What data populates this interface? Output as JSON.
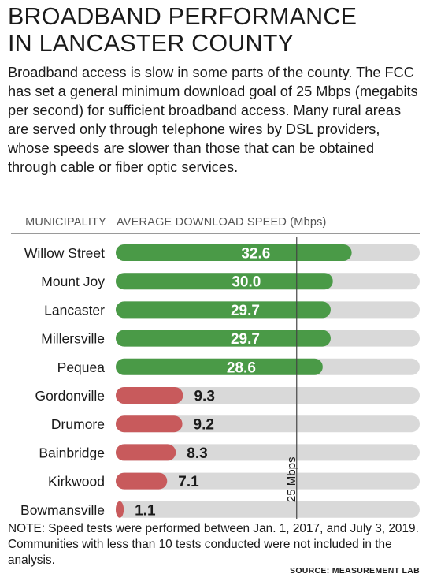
{
  "header": {
    "title_line1": "BROADBAND PERFORMANCE",
    "title_line2": "IN LANCASTER COUNTY",
    "intro": "Broadband access is slow in some parts of the county. The FCC has set a general minimum download goal of 25 Mbps (megabits per second) for sufficient broadband access. Many rural areas are served only through telephone wires by DSL providers, whose speeds are slower than those that can be obtained through cable or fiber optic services."
  },
  "columns": {
    "left": "MUNICIPALITY",
    "right": "AVERAGE DOWNLOAD SPEED (Mbps)"
  },
  "chart_data": {
    "type": "bar",
    "orientation": "horizontal",
    "categories": [
      "Willow Street",
      "Mount Joy",
      "Lancaster",
      "Millersville",
      "Pequea",
      "Gordonville",
      "Drumore",
      "Bainbridge",
      "Kirkwood",
      "Bowmansville"
    ],
    "values": [
      32.6,
      30.0,
      29.7,
      29.7,
      28.6,
      9.3,
      9.2,
      8.3,
      7.1,
      1.1
    ],
    "value_labels": [
      "32.6",
      "30.0",
      "29.7",
      "29.7",
      "28.6",
      "9.3",
      "9.2",
      "8.3",
      "7.1",
      "1.1"
    ],
    "xlabel": "AVERAGE DOWNLOAD SPEED (Mbps)",
    "xlim": [
      0,
      42
    ],
    "reference_line": {
      "value": 25,
      "label": "25 Mbps"
    },
    "colors": {
      "above": "#4a9a47",
      "below": "#c85a5c",
      "track": "#d9d9d9",
      "rule": "#444444"
    }
  },
  "footer": {
    "note": "NOTE:  Speed tests were performed between Jan. 1, 2017, and July 3, 2019. Communities with less than 10 tests conducted were not included in the analysis.",
    "source": "SOURCE:  MEASUREMENT LAB"
  }
}
